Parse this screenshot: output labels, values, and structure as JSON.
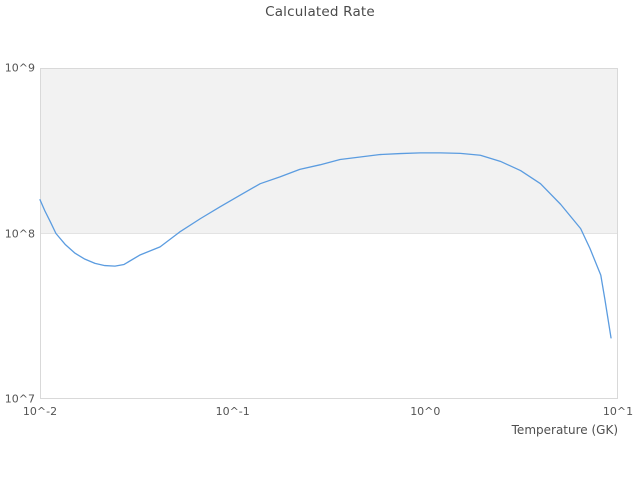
{
  "chart_data": {
    "type": "line",
    "title": "Calculated Rate",
    "xlabel": "Temperature (GK)",
    "ylabel": "",
    "x_scale": "log",
    "y_scale": "log",
    "xlim": [
      0.01,
      10
    ],
    "ylim": [
      10000000.0,
      1000000000.0
    ],
    "x_ticks": [
      {
        "value": 0.01,
        "label": "10^-2"
      },
      {
        "value": 0.1,
        "label": "10^-1"
      },
      {
        "value": 1,
        "label": "10^0"
      },
      {
        "value": 10,
        "label": "10^1"
      }
    ],
    "y_ticks": [
      {
        "value": 10000000.0,
        "label": "10^7"
      },
      {
        "value": 100000000.0,
        "label": "10^8"
      },
      {
        "value": 1000000000.0,
        "label": "10^9"
      }
    ],
    "grid": "off",
    "legend": false,
    "shaded_band": {
      "from": 100000000.0,
      "to": 1000000000.0
    },
    "colors": {
      "line": "#5b9ce0",
      "band_fill": "#f2f2f2",
      "band_edge": "#e3e3e3",
      "plot_border": "#d9d9d9",
      "title_text": "#4a4a4a",
      "tick_text": "#545454"
    },
    "series": [
      {
        "name": "Calculated Rate",
        "x": [
          0.01,
          0.0106,
          0.0113,
          0.0121,
          0.0135,
          0.0152,
          0.0171,
          0.0193,
          0.0217,
          0.0245,
          0.0273,
          0.0329,
          0.042,
          0.053,
          0.068,
          0.086,
          0.109,
          0.139,
          0.176,
          0.223,
          0.284,
          0.361,
          0.459,
          0.583,
          0.741,
          0.942,
          1.2,
          1.52,
          1.93,
          2.45,
          3.12,
          3.96,
          5.04,
          6.4,
          7.16,
          8.14,
          8.55,
          9.2
        ],
        "y": [
          160000000.0,
          137000000.0,
          118000000.0,
          100000000.0,
          86000000.0,
          76000000.0,
          70000000.0,
          66000000.0,
          64000000.0,
          63500000.0,
          65000000.0,
          74000000.0,
          83000000.0,
          102000000.0,
          123000000.0,
          145000000.0,
          170000000.0,
          200000000.0,
          220000000.0,
          244000000.0,
          260000000.0,
          280000000.0,
          290000000.0,
          300000000.0,
          304000000.0,
          307000000.0,
          307000000.0,
          305000000.0,
          297000000.0,
          273000000.0,
          240000000.0,
          200000000.0,
          150000000.0,
          107000000.0,
          81000000.0,
          56000000.0,
          40000000.0,
          23400000.0
        ]
      }
    ]
  }
}
